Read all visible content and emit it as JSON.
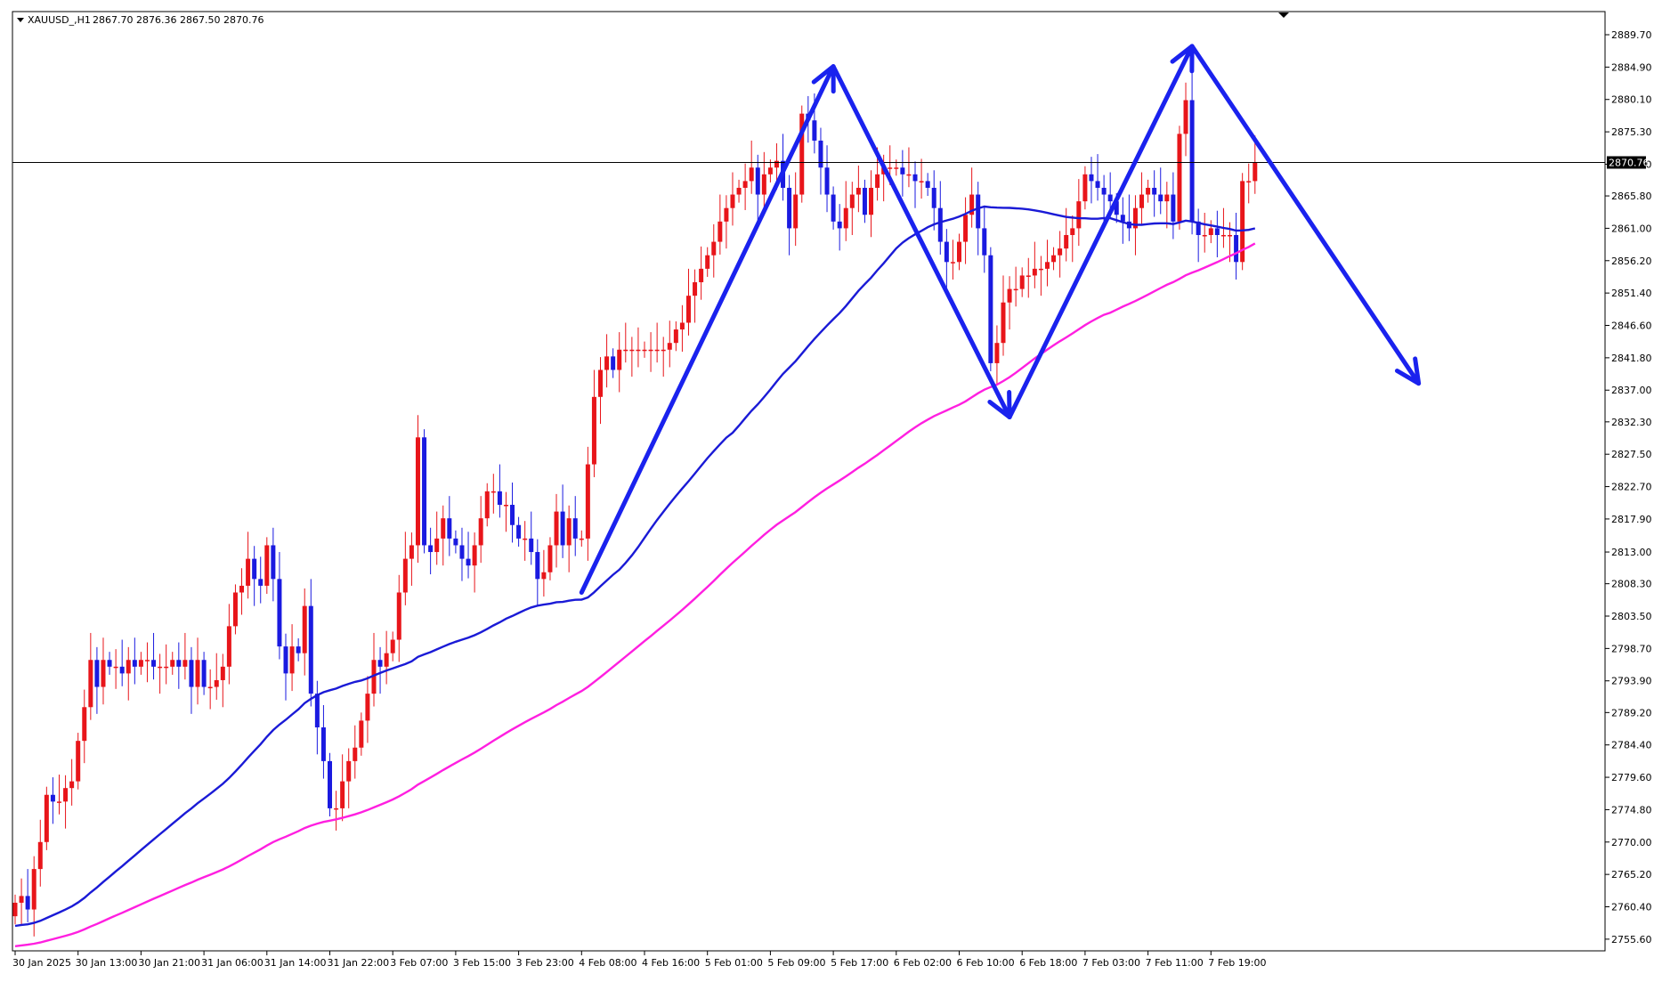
{
  "header": {
    "symbol_timeframe": "XAUUSD_,H1",
    "ohlc_text": "2867.70 2876.36 2867.50 2870.76"
  },
  "chart_data": {
    "type": "candlestick",
    "title": "",
    "current_price": 2870.76,
    "current_price_label": "2870.76",
    "ylim": [
      2754.0,
      2893.0
    ],
    "y_ticks": [
      "2889.70",
      "2884.90",
      "2880.10",
      "2875.30",
      "2870.50",
      "2865.80",
      "2861.00",
      "2856.20",
      "2851.40",
      "2846.60",
      "2841.80",
      "2837.00",
      "2832.30",
      "2827.50",
      "2822.70",
      "2817.90",
      "2813.00",
      "2808.30",
      "2803.50",
      "2798.70",
      "2793.90",
      "2789.20",
      "2784.40",
      "2779.60",
      "2774.80",
      "2770.00",
      "2765.20",
      "2760.40",
      "2755.60"
    ],
    "x_ticks": [
      {
        "bar": 0,
        "label": "30 Jan 2025"
      },
      {
        "bar": 10,
        "label": "30 Jan 13:00"
      },
      {
        "bar": 20,
        "label": "30 Jan 21:00"
      },
      {
        "bar": 30,
        "label": "31 Jan 06:00"
      },
      {
        "bar": 40,
        "label": "31 Jan 14:00"
      },
      {
        "bar": 50,
        "label": "31 Jan 22:00"
      },
      {
        "bar": 60,
        "label": "3 Feb 07:00"
      },
      {
        "bar": 70,
        "label": "3 Feb 15:00"
      },
      {
        "bar": 80,
        "label": "3 Feb 23:00"
      },
      {
        "bar": 90,
        "label": "4 Feb 08:00"
      },
      {
        "bar": 100,
        "label": "4 Feb 16:00"
      },
      {
        "bar": 110,
        "label": "5 Feb 01:00"
      },
      {
        "bar": 120,
        "label": "5 Feb 09:00"
      },
      {
        "bar": 130,
        "label": "5 Feb 17:00"
      },
      {
        "bar": 140,
        "label": "6 Feb 02:00"
      },
      {
        "bar": 150,
        "label": "6 Feb 10:00"
      },
      {
        "bar": 160,
        "label": "6 Feb 18:00"
      },
      {
        "bar": 170,
        "label": "7 Feb 03:00"
      },
      {
        "bar": 180,
        "label": "7 Feb 11:00"
      },
      {
        "bar": 190,
        "label": "7 Feb 19:00"
      }
    ],
    "closes": [
      2761,
      2762,
      2760,
      2766,
      2770,
      2777,
      2776,
      2776,
      2778,
      2779,
      2785,
      2790,
      2797,
      2793,
      2797,
      2796,
      2796,
      2795,
      2797,
      2796,
      2797,
      2797,
      2796,
      2796,
      2796,
      2797,
      2796,
      2797,
      2793,
      2797,
      2793,
      2793,
      2794,
      2796,
      2802,
      2807,
      2808,
      2812,
      2809,
      2808,
      2814,
      2809,
      2799,
      2795,
      2799,
      2798,
      2805,
      2792,
      2787,
      2782,
      2775,
      2775,
      2779,
      2782,
      2784,
      2788,
      2792,
      2797,
      2796,
      2798,
      2800,
      2807,
      2812,
      2814,
      2830,
      2814,
      2813,
      2815,
      2818,
      2815,
      2814,
      2812,
      2811,
      2814,
      2818,
      2822,
      2822,
      2820,
      2820,
      2817,
      2815,
      2815,
      2813,
      2809,
      2810,
      2814,
      2819,
      2814,
      2818,
      2815,
      2815,
      2826,
      2836,
      2840,
      2842,
      2840,
      2843,
      2843,
      2843,
      2843,
      2843,
      2843,
      2843,
      2843,
      2844,
      2846,
      2847,
      2851,
      2853,
      2855,
      2857,
      2859,
      2862,
      2864,
      2866,
      2867,
      2868,
      2870,
      2866,
      2869,
      2870,
      2871,
      2867,
      2861,
      2866,
      2878,
      2877,
      2874,
      2870,
      2866,
      2862,
      2861,
      2864,
      2866,
      2867,
      2863,
      2867,
      2869,
      2870,
      2870,
      2870,
      2869,
      2869,
      2868,
      2868,
      2867,
      2864,
      2859,
      2856,
      2856,
      2859,
      2863,
      2866,
      2861,
      2857,
      2841,
      2844,
      2850,
      2852,
      2852,
      2854,
      2854,
      2855,
      2855,
      2856,
      2857,
      2858,
      2860,
      2861,
      2865,
      2869,
      2868,
      2867,
      2866,
      2865,
      2863,
      2862,
      2861,
      2864,
      2866,
      2867,
      2866,
      2865,
      2866,
      2862,
      2875,
      2880,
      2862,
      2860,
      2860,
      2861,
      2860,
      2860,
      2860,
      2856,
      2868,
      2868,
      2870.76
    ],
    "annotation_points": [
      {
        "bar": 90,
        "price": 2807
      },
      {
        "bar": 130,
        "price": 2885
      },
      {
        "bar": 158,
        "price": 2833
      },
      {
        "bar": 187,
        "price": 2888
      },
      {
        "bar": 223,
        "price": 2838
      }
    ]
  },
  "colors": {
    "bull_candle": "#e8151a",
    "bear_candle": "#1a1ae0",
    "ma_fast": "#1a1ad6",
    "ma_slow": "#ff1fe0",
    "annotation": "#1a22ee",
    "price_line": "#000000"
  }
}
